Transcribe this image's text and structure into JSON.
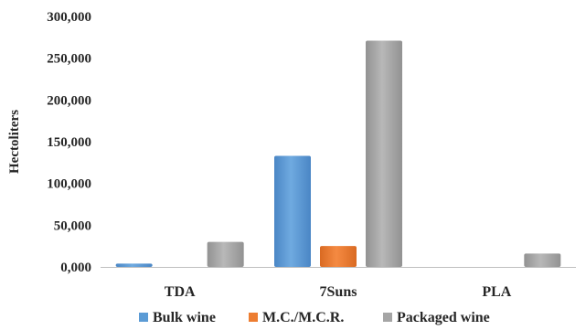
{
  "chart_data": {
    "type": "bar",
    "title": "",
    "xlabel": "",
    "ylabel": "Hectoliters",
    "categories": [
      "TDA",
      "7Suns",
      "PLA"
    ],
    "series": [
      {
        "name": "Bulk wine",
        "color": "#5B9BD5",
        "values": [
          4000,
          133000,
          0
        ]
      },
      {
        "name": "M.C./M.C.R.",
        "color": "#ED7D31",
        "values": [
          0,
          25000,
          0
        ]
      },
      {
        "name": "Packaged wine",
        "color": "#A5A5A5",
        "values": [
          30000,
          271000,
          16000
        ]
      }
    ],
    "ylim": [
      0,
      300000
    ],
    "yticks": [
      0,
      50000,
      100000,
      150000,
      200000,
      250000,
      300000
    ],
    "ytick_labels": [
      "0,000",
      "50,000",
      "100,000",
      "150,000",
      "200,000",
      "250,000",
      "300,000"
    ],
    "grid": false,
    "legend_position": "bottom"
  }
}
